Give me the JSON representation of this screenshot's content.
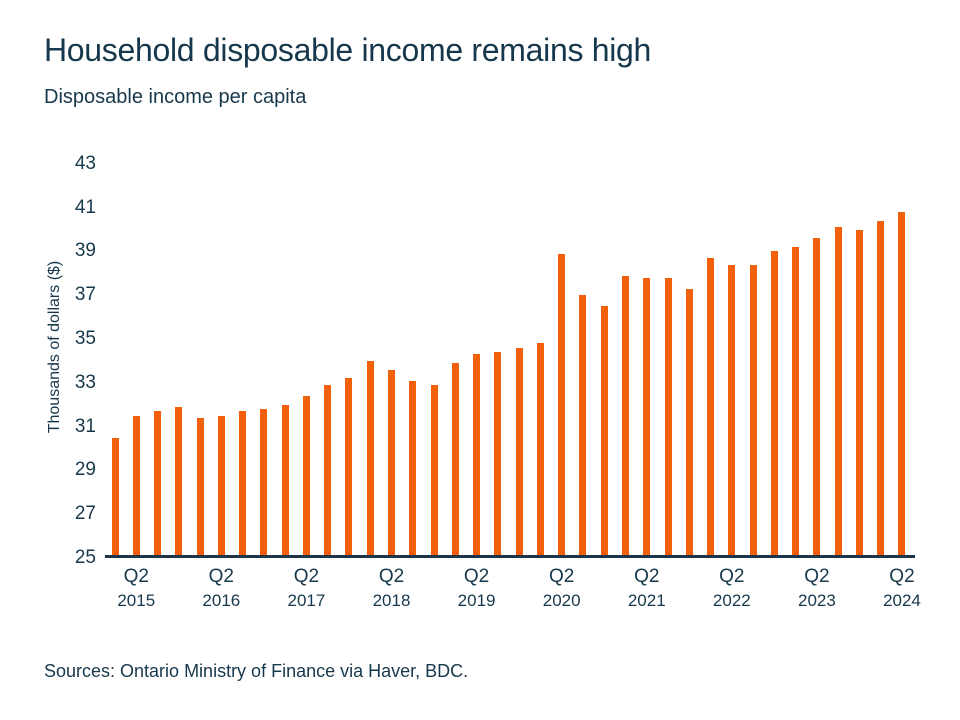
{
  "header": {
    "title": "Household disposable income remains high",
    "subtitle": "Disposable income per capita"
  },
  "chart_data": {
    "type": "bar",
    "title": "Household disposable income remains high",
    "subtitle": "Disposable income per capita",
    "xlabel": "",
    "ylabel": "Thousands of dollars ($)",
    "ylim": [
      25,
      43
    ],
    "yticks": [
      43,
      41,
      39,
      37,
      35,
      33,
      31,
      29,
      27,
      25
    ],
    "grid": false,
    "legend": "none",
    "bar_color": "#f2600c",
    "categories": [
      "2015 Q1",
      "2015 Q2",
      "2015 Q3",
      "2015 Q4",
      "2016 Q1",
      "2016 Q2",
      "2016 Q3",
      "2016 Q4",
      "2017 Q1",
      "2017 Q2",
      "2017 Q3",
      "2017 Q4",
      "2018 Q1",
      "2018 Q2",
      "2018 Q3",
      "2018 Q4",
      "2019 Q1",
      "2019 Q2",
      "2019 Q3",
      "2019 Q4",
      "2020 Q1",
      "2020 Q2",
      "2020 Q3",
      "2020 Q4",
      "2021 Q1",
      "2021 Q2",
      "2021 Q3",
      "2021 Q4",
      "2022 Q1",
      "2022 Q2",
      "2022 Q3",
      "2022 Q4",
      "2023 Q1",
      "2023 Q2",
      "2023 Q3",
      "2023 Q4",
      "2024 Q1",
      "2024 Q2"
    ],
    "values": [
      30.5,
      31.5,
      31.7,
      31.9,
      31.4,
      31.5,
      31.7,
      31.8,
      32.0,
      32.4,
      32.9,
      33.2,
      34.0,
      33.6,
      33.1,
      32.9,
      33.9,
      34.3,
      34.4,
      34.6,
      34.8,
      38.9,
      37.0,
      36.5,
      37.9,
      37.8,
      37.8,
      37.3,
      38.7,
      38.4,
      38.4,
      39.0,
      39.2,
      39.6,
      40.1,
      40.0,
      40.4,
      40.8
    ],
    "xticks": [
      {
        "quarter": "Q2",
        "year": "2015",
        "index": 1
      },
      {
        "quarter": "Q2",
        "year": "2016",
        "index": 5
      },
      {
        "quarter": "Q2",
        "year": "2017",
        "index": 9
      },
      {
        "quarter": "Q2",
        "year": "2018",
        "index": 13
      },
      {
        "quarter": "Q2",
        "year": "2019",
        "index": 17
      },
      {
        "quarter": "Q2",
        "year": "2020",
        "index": 21
      },
      {
        "quarter": "Q2",
        "year": "2021",
        "index": 25
      },
      {
        "quarter": "Q2",
        "year": "2022",
        "index": 29
      },
      {
        "quarter": "Q2",
        "year": "2023",
        "index": 33
      },
      {
        "quarter": "Q2",
        "year": "2024",
        "index": 37
      }
    ]
  },
  "footer": {
    "source": "Sources: Ontario Ministry of Finance via Haver, BDC."
  },
  "colors": {
    "text": "#17384c",
    "axis": "#1e3448",
    "bar": "#f2600c",
    "background": "#ffffff"
  }
}
